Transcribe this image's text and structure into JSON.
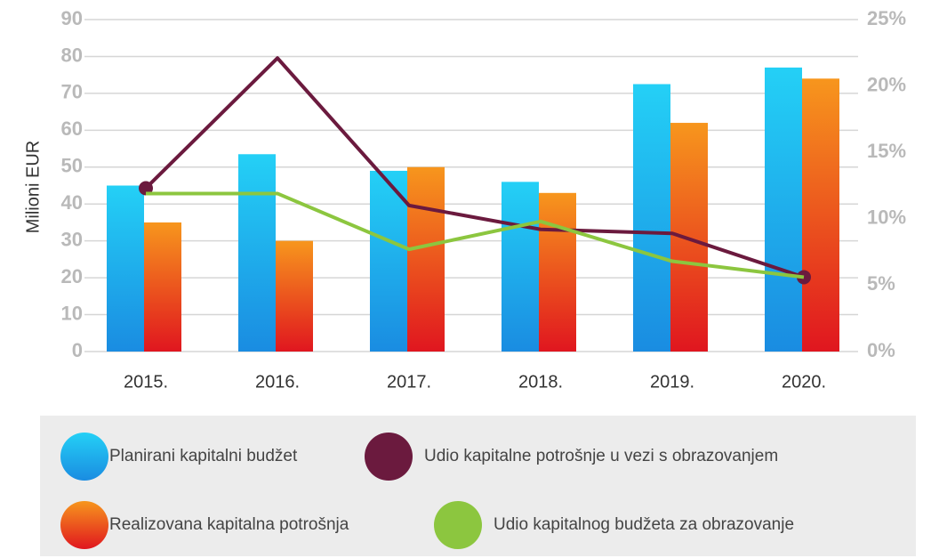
{
  "chart_data": {
    "type": "bar_line",
    "y_label": "Milioni EUR",
    "categories": [
      "2015.",
      "2016.",
      "2017.",
      "2018.",
      "2019.",
      "2020."
    ],
    "series": [
      {
        "name": "Planirani kapitalni budžet",
        "type": "bar",
        "color": "#24d0f6",
        "color_end": "#1a8ce1",
        "values": [
          45,
          53.5,
          49,
          46,
          72.5,
          77
        ]
      },
      {
        "name": "Realizovana kapitalna potrošnja",
        "type": "bar",
        "color": "#f7961d",
        "color_end": "#e0161f",
        "values": [
          35,
          30,
          50,
          43,
          62,
          74
        ]
      },
      {
        "name": "Udio kapitalne potrošnje u vezi s obrazovanjem",
        "type": "line",
        "axis": "y2",
        "color": "#6b1a3e",
        "values": [
          12.3,
          22.1,
          11.0,
          9.2,
          8.9,
          5.6
        ]
      },
      {
        "name": "Udio kapitalnog budžeta za obrazovanje",
        "type": "line",
        "axis": "y2",
        "color": "#8cc63f",
        "values": [
          11.9,
          11.9,
          7.7,
          9.8,
          6.8,
          5.6
        ]
      }
    ],
    "ylim": [
      0,
      90
    ],
    "yticks": [
      0,
      10,
      20,
      30,
      40,
      50,
      60,
      70,
      80,
      90
    ],
    "y2lim": [
      0,
      25
    ],
    "y2ticks": [
      {
        "value": 0,
        "label": "0%"
      },
      {
        "value": 5,
        "label": "5%"
      },
      {
        "value": 10,
        "label": "10%"
      },
      {
        "value": 15,
        "label": "15%"
      },
      {
        "value": 20,
        "label": "20%"
      },
      {
        "value": 25,
        "label": "25%"
      }
    ],
    "grid": true,
    "legend": "bottom"
  }
}
